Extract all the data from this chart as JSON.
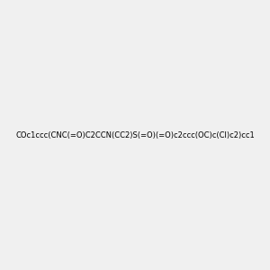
{
  "smiles": "COc1ccc(CNC(=O)C2CCN(CC2)S(=O)(=O)c2ccc(OC)c(Cl)c2)cc1",
  "image_size": 300,
  "background_color": "#f0f0f0",
  "title": ""
}
